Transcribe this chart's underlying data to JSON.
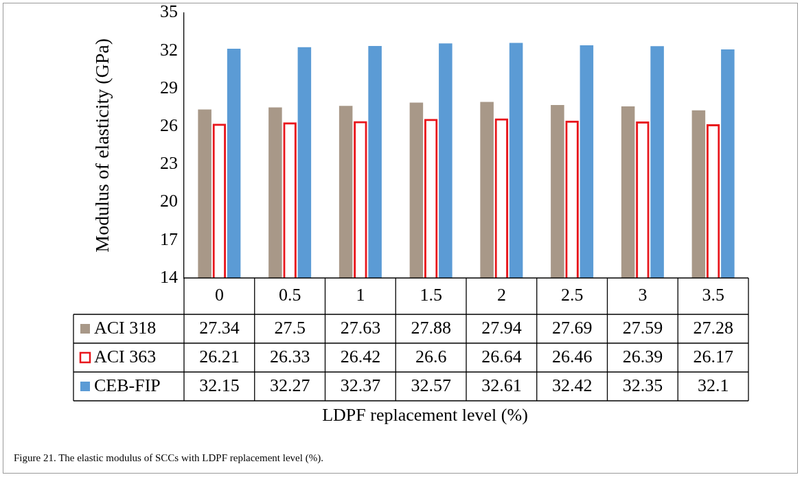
{
  "chart_data": {
    "type": "bar",
    "ylabel": "Modulus of elasticity (GPa)",
    "categories": [
      "0",
      "0.5",
      "1",
      "1.5",
      "2",
      "2.5",
      "3",
      "3.5"
    ],
    "series": [
      {
        "name": "ACI 318",
        "color": "#a89888",
        "values": [
          27.34,
          27.5,
          27.63,
          27.88,
          27.94,
          27.69,
          27.59,
          27.28
        ]
      },
      {
        "name": "ACI 363",
        "color": "#e8161c",
        "values": [
          26.21,
          26.33,
          26.42,
          26.6,
          26.64,
          26.46,
          26.39,
          26.17
        ]
      },
      {
        "name": "CEB-FIP",
        "color": "#5b9bd5",
        "values": [
          32.15,
          32.27,
          32.37,
          32.57,
          32.61,
          32.42,
          32.35,
          32.1
        ]
      }
    ],
    "ylim": [
      14,
      35
    ],
    "yticks": [
      14,
      17,
      20,
      23,
      26,
      29,
      32,
      35
    ],
    "data_labels": true,
    "legend": "bottom",
    "annotations": [
      "LDPF replacement level (%)",
      "Figure 21. The elastic modulus of SCCs with LDPF replacement level (%)."
    ]
  }
}
